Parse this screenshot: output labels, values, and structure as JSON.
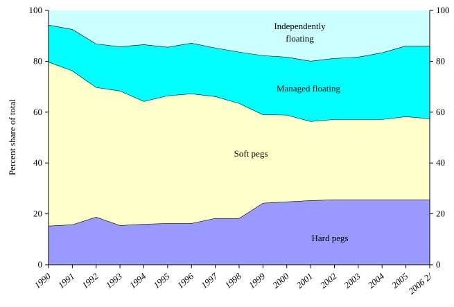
{
  "chart_data": {
    "type": "stacked-area",
    "y_label": "Percent share of total",
    "categories": [
      "1990",
      "1991",
      "1992",
      "1993",
      "1994",
      "1995",
      "1996",
      "1997",
      "1998",
      "1999",
      "2000",
      "2001",
      "2002",
      "2003",
      "2004",
      "2005",
      "2006 2/"
    ],
    "series": [
      {
        "name": "Hard pegs",
        "color": "#9999ff",
        "values": [
          15.3,
          15.8,
          18.8,
          15.5,
          16.0,
          16.3,
          16.3,
          18.3,
          18.3,
          24.3,
          24.8,
          25.3,
          25.6,
          25.6,
          25.6,
          25.6,
          25.6
        ]
      },
      {
        "name": "Soft pegs",
        "color": "#ffffcc",
        "values": [
          64.5,
          60.5,
          51.0,
          52.9,
          48.3,
          50.2,
          51.0,
          47.9,
          45.2,
          34.8,
          34.1,
          31.1,
          31.6,
          31.6,
          31.6,
          32.7,
          31.9
        ]
      },
      {
        "name": "Managed floating",
        "color": "#00ffff",
        "values": [
          14.5,
          16.3,
          17.1,
          17.4,
          22.3,
          19.1,
          19.9,
          19.1,
          20.2,
          23.2,
          22.8,
          23.7,
          24.0,
          24.5,
          26.2,
          27.8,
          28.6
        ]
      },
      {
        "name": "Independently floating",
        "color": "#ccffff",
        "values": [
          5.7,
          7.4,
          13.1,
          14.2,
          13.4,
          14.4,
          12.8,
          14.7,
          16.3,
          17.7,
          18.3,
          19.9,
          18.8,
          18.3,
          16.6,
          13.9,
          13.9
        ]
      }
    ],
    "ylim": [
      0,
      100
    ],
    "yticks": [
      0,
      20,
      40,
      60,
      80,
      100
    ]
  }
}
